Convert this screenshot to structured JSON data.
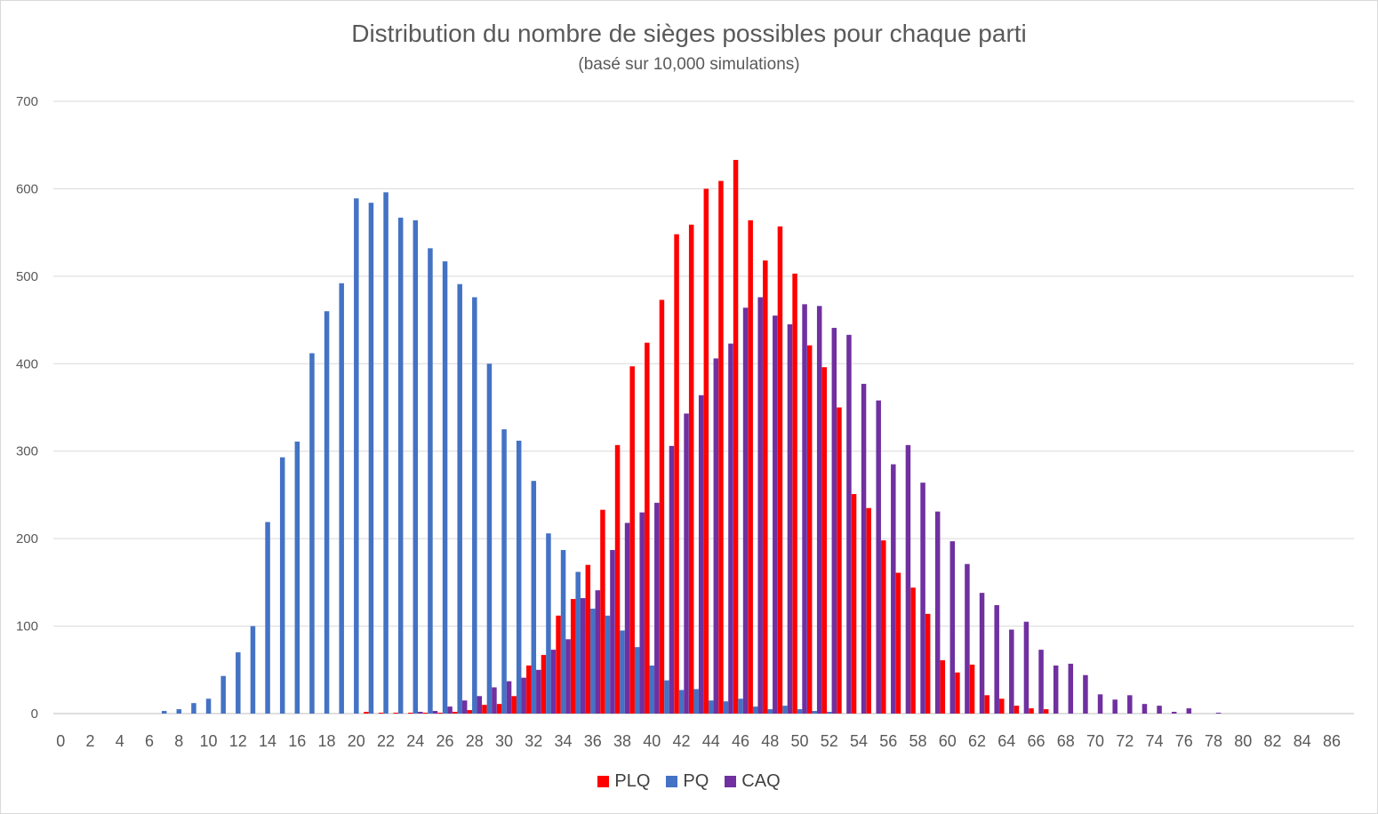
{
  "chart_data": {
    "type": "bar",
    "title": "Distribution du nombre de sièges possibles pour chaque parti",
    "subtitle": "(basé sur 10,000 simulations)",
    "xlabel": "",
    "ylabel": "",
    "ylim": [
      0,
      700
    ],
    "yticks": [
      0,
      100,
      200,
      300,
      400,
      500,
      600,
      700
    ],
    "grid": true,
    "legend_position": "bottom",
    "x_start": 0,
    "x_end": 87,
    "x_tick_step": 2,
    "series": [
      {
        "name": "PLQ",
        "color": "#ff0000",
        "values": [
          0,
          0,
          0,
          0,
          0,
          0,
          0,
          0,
          0,
          0,
          0,
          0,
          0,
          0,
          0,
          0,
          0,
          0,
          0,
          0,
          0,
          2,
          1,
          1,
          1,
          1,
          1,
          2,
          4,
          10,
          11,
          20,
          55,
          67,
          112,
          131,
          170,
          233,
          307,
          397,
          424,
          473,
          548,
          559,
          600,
          609,
          633,
          564,
          518,
          557,
          503,
          421,
          396,
          350,
          251,
          235,
          198,
          161,
          144,
          114,
          61,
          47,
          56,
          21,
          17,
          9,
          6,
          5,
          0,
          0,
          0,
          0,
          0,
          0,
          0,
          0,
          0,
          0,
          0,
          0,
          0,
          0,
          0,
          0,
          0,
          0,
          0,
          0
        ]
      },
      {
        "name": "PQ",
        "color": "#4472c4",
        "values": [
          0,
          0,
          0,
          0,
          0,
          0,
          0,
          3,
          5,
          12,
          17,
          43,
          70,
          100,
          219,
          293,
          311,
          412,
          460,
          492,
          589,
          584,
          596,
          567,
          564,
          532,
          517,
          491,
          476,
          400,
          325,
          312,
          266,
          206,
          187,
          162,
          120,
          112,
          95,
          76,
          55,
          38,
          27,
          28,
          15,
          14,
          17,
          8,
          5,
          9,
          5,
          3,
          2,
          0,
          0,
          0,
          0,
          0,
          0,
          0,
          0,
          0,
          0,
          0,
          0,
          0,
          0,
          0,
          0,
          0,
          0,
          0,
          0,
          0,
          0,
          0,
          0,
          0,
          0,
          0,
          0,
          0,
          0,
          0,
          0,
          0,
          0,
          0
        ]
      },
      {
        "name": "CAQ",
        "color": "#7030a0",
        "values": [
          0,
          0,
          0,
          0,
          0,
          0,
          0,
          0,
          0,
          0,
          0,
          0,
          0,
          0,
          0,
          0,
          0,
          0,
          0,
          0,
          0,
          0,
          0,
          0,
          2,
          3,
          8,
          15,
          20,
          30,
          37,
          41,
          50,
          73,
          85,
          132,
          141,
          187,
          218,
          230,
          241,
          306,
          343,
          364,
          406,
          423,
          464,
          476,
          455,
          445,
          468,
          466,
          441,
          433,
          377,
          358,
          285,
          307,
          264,
          231,
          197,
          171,
          138,
          124,
          96,
          105,
          73,
          55,
          57,
          44,
          22,
          16,
          21,
          11,
          9,
          2,
          6,
          0,
          1,
          0,
          0,
          0,
          0,
          0,
          0,
          0,
          0,
          0
        ]
      }
    ]
  },
  "legend": {
    "plq": "PLQ",
    "pq": "PQ",
    "caq": "CAQ"
  }
}
